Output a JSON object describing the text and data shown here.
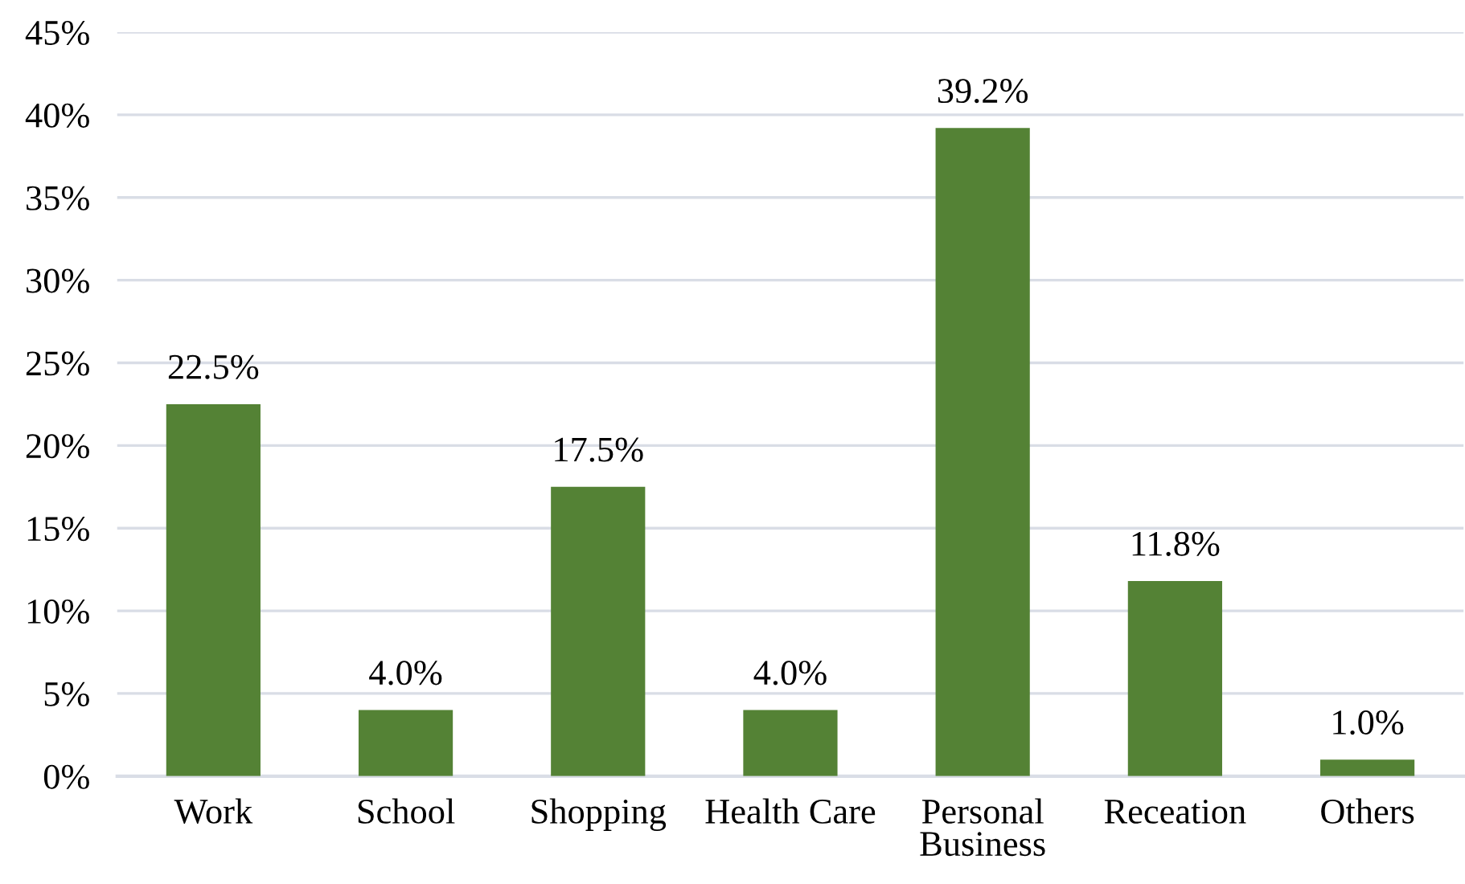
{
  "chart_data": {
    "type": "bar",
    "categories": [
      "Work",
      "School",
      "Shopping",
      "Health Care",
      "Personal\nBusiness",
      "Receation",
      "Others"
    ],
    "values": [
      22.5,
      4.0,
      17.5,
      4.0,
      39.2,
      11.8,
      1.0
    ],
    "value_labels": [
      "22.5%",
      "4.0%",
      "17.5%",
      "4.0%",
      "39.2%",
      "11.8%",
      "1.0%"
    ],
    "color": "#548235",
    "ylim": [
      0,
      45
    ],
    "yticks": [
      {
        "value": 0,
        "label": "0%"
      },
      {
        "value": 5,
        "label": "5%"
      },
      {
        "value": 10,
        "label": "10%"
      },
      {
        "value": 15,
        "label": "15%"
      },
      {
        "value": 20,
        "label": "20%"
      },
      {
        "value": 25,
        "label": "25%"
      },
      {
        "value": 30,
        "label": "30%"
      },
      {
        "value": 35,
        "label": "35%"
      },
      {
        "value": 40,
        "label": "40%"
      },
      {
        "value": 45,
        "label": "45%"
      }
    ],
    "grid": "y",
    "legend": false
  }
}
